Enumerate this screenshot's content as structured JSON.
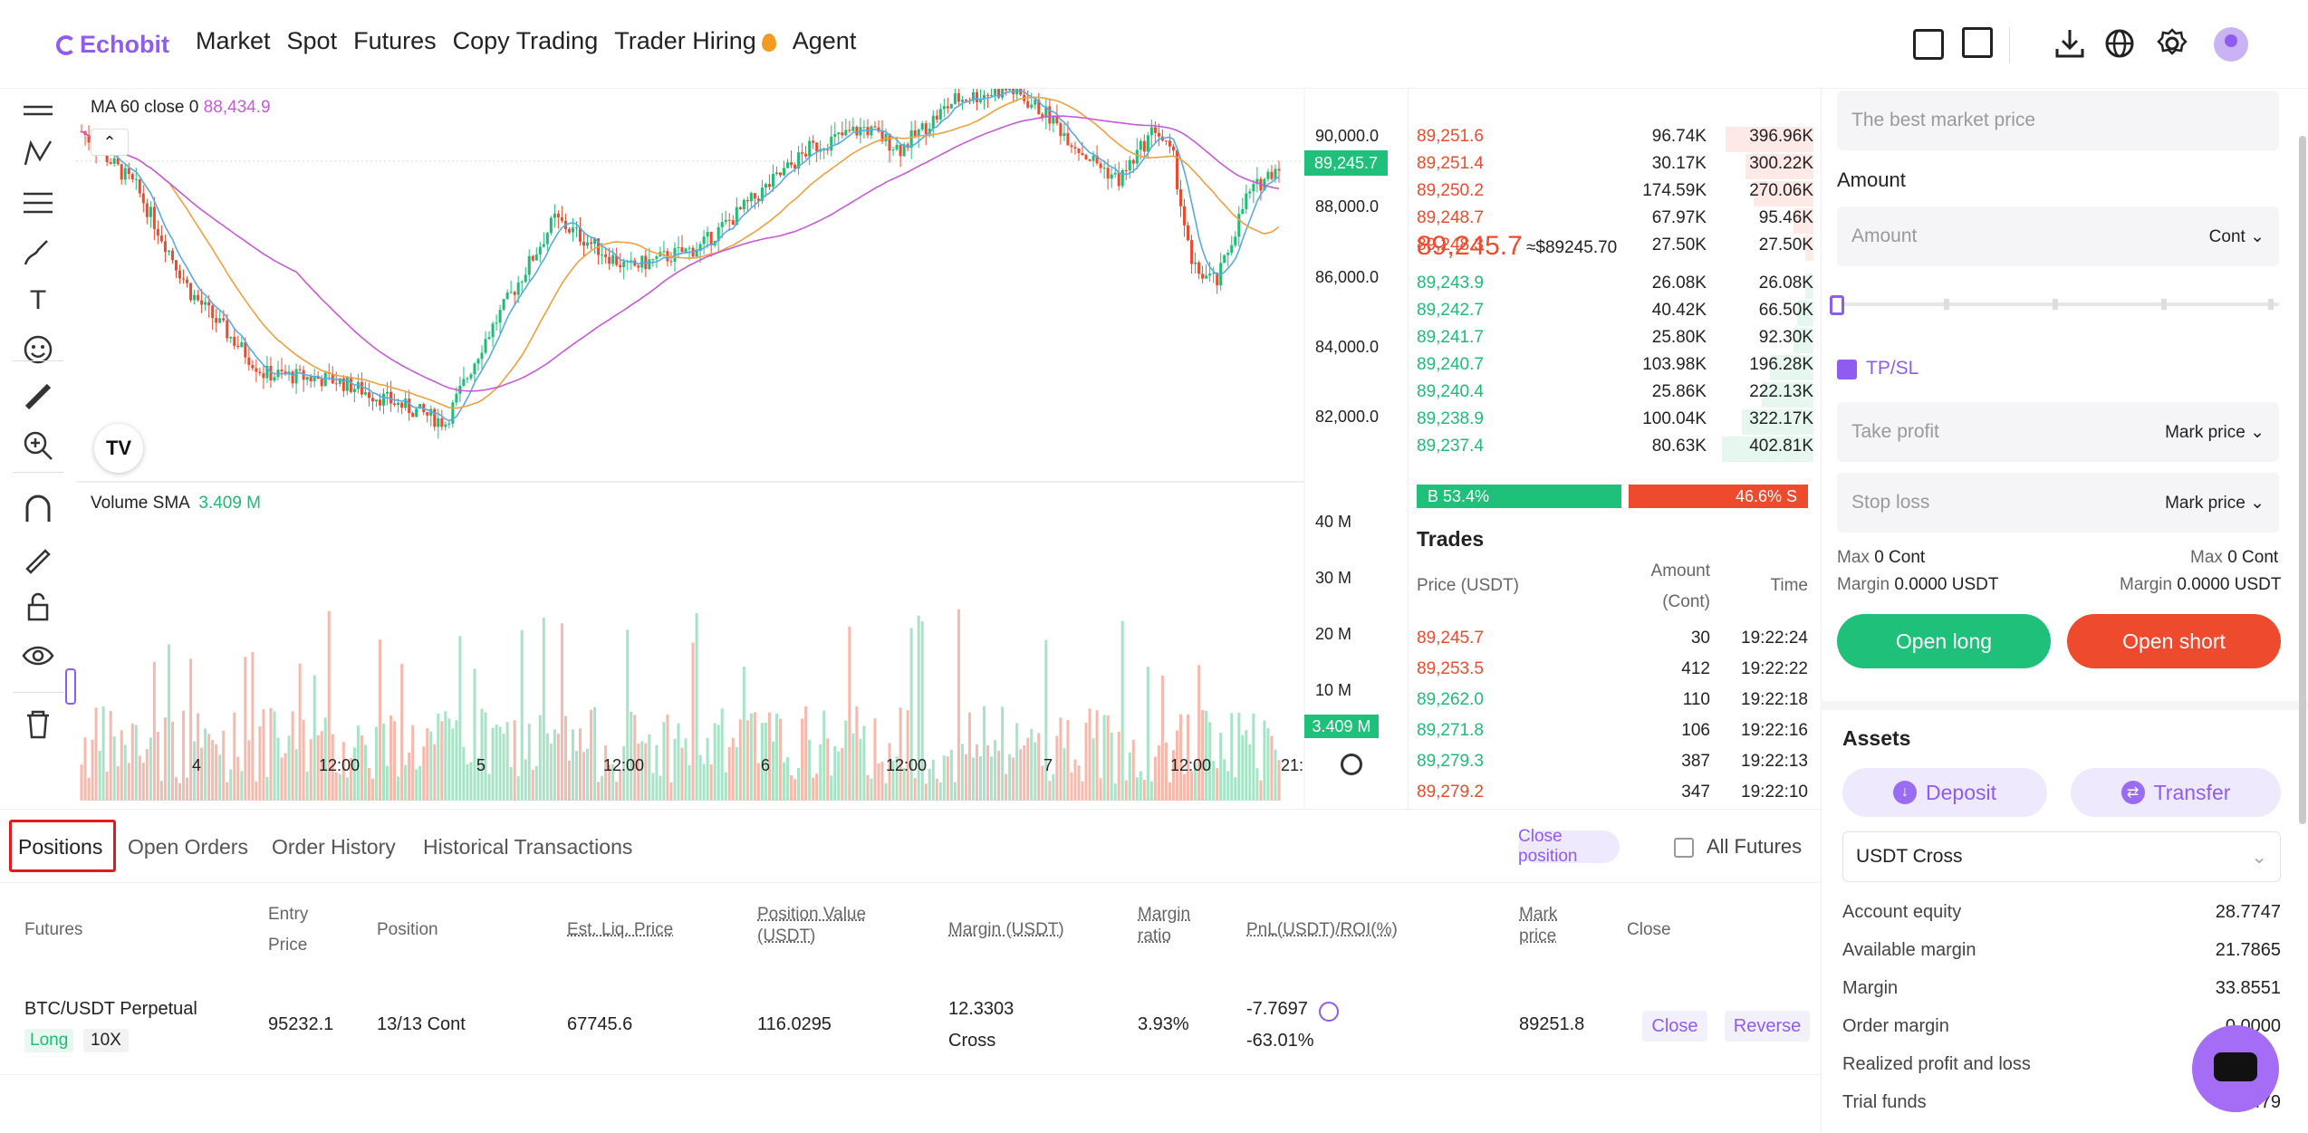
{
  "brand": {
    "name": "Echobit",
    "accent": "#8f5cf2",
    "up": "#1ebc77",
    "down": "#ee4b2e"
  },
  "nav": [
    "Market",
    "Spot",
    "Futures",
    "Copy Trading",
    "Trader Hiring",
    "Agent"
  ],
  "header_icons": [
    "wallet-icon",
    "orders-icon",
    "download-icon",
    "globe-icon",
    "settings-icon",
    "avatar"
  ],
  "chart": {
    "ma_legend": "MA 60 close 0",
    "ma_value": "88,434.9",
    "vol_legend": "Volume SMA",
    "vol_value": "3.409 M",
    "price_axis": [
      "90,000.0",
      "88,000.0",
      "86,000.0",
      "84,000.0",
      "82,000.0"
    ],
    "current_price_tag": "89,245.7",
    "vol_axis": [
      "40 M",
      "30 M",
      "20 M",
      "10 M"
    ],
    "vol_tag": "3.409 M",
    "time_axis": [
      "4",
      "12:00",
      "5",
      "12:00",
      "6",
      "12:00",
      "7",
      "12:00",
      "21:"
    ]
  },
  "orderbook": {
    "asks": [
      {
        "price": "89,251.6",
        "amount": "96.74K",
        "total": "396.96K",
        "depth": 0.22
      },
      {
        "price": "89,251.4",
        "amount": "30.17K",
        "total": "300.22K",
        "depth": 0.17
      },
      {
        "price": "89,250.2",
        "amount": "174.59K",
        "total": "270.06K",
        "depth": 0.15
      },
      {
        "price": "89,248.7",
        "amount": "67.97K",
        "total": "95.46K",
        "depth": 0.05
      },
      {
        "price": "89,248.3",
        "amount": "27.50K",
        "total": "27.50K",
        "depth": 0.02
      }
    ],
    "last_price": "89,245.7",
    "last_usd": "≈$89245.70",
    "bids": [
      {
        "price": "89,243.9",
        "amount": "26.08K",
        "total": "26.08K",
        "depth": 0.02
      },
      {
        "price": "89,242.7",
        "amount": "40.42K",
        "total": "66.50K",
        "depth": 0.04
      },
      {
        "price": "89,241.7",
        "amount": "25.80K",
        "total": "92.30K",
        "depth": 0.05
      },
      {
        "price": "89,240.7",
        "amount": "103.98K",
        "total": "196.28K",
        "depth": 0.11
      },
      {
        "price": "89,240.4",
        "amount": "25.86K",
        "total": "222.13K",
        "depth": 0.13
      },
      {
        "price": "89,238.9",
        "amount": "100.04K",
        "total": "322.17K",
        "depth": 0.18
      },
      {
        "price": "89,237.4",
        "amount": "80.63K",
        "total": "402.81K",
        "depth": 0.23
      }
    ],
    "buy_ratio": "B 53.4%",
    "sell_ratio": "46.6% S"
  },
  "trades": {
    "title": "Trades",
    "headers": {
      "price": "Price (USDT)",
      "amount_1": "Amount",
      "amount_2": "(Cont)",
      "time": "Time"
    },
    "rows": [
      {
        "price": "89,245.7",
        "amount": "30",
        "time": "19:22:24",
        "side": "sell"
      },
      {
        "price": "89,253.5",
        "amount": "412",
        "time": "19:22:22",
        "side": "sell"
      },
      {
        "price": "89,262.0",
        "amount": "110",
        "time": "19:22:18",
        "side": "buy"
      },
      {
        "price": "89,271.8",
        "amount": "106",
        "time": "19:22:16",
        "side": "buy"
      },
      {
        "price": "89,279.3",
        "amount": "387",
        "time": "19:22:13",
        "side": "buy"
      },
      {
        "price": "89,279.2",
        "amount": "347",
        "time": "19:22:10",
        "side": "sell"
      }
    ]
  },
  "order_form": {
    "price_placeholder": "The best market price",
    "amount_label": "Amount",
    "amount_placeholder": "Amount",
    "amount_unit": "Cont",
    "slider_percent": 0,
    "tpsl_label": "TP/SL",
    "tpsl_checked": true,
    "take_profit": "Take profit",
    "stop_loss": "Stop loss",
    "trigger_type": "Mark price",
    "max_long_label": "Max",
    "max_long": "0 Cont",
    "max_short_label": "Max",
    "max_short": "0 Cont",
    "margin_long_label": "Margin",
    "margin_long": "0.0000 USDT",
    "margin_short_label": "Margin",
    "margin_short": "0.0000 USDT",
    "open_long": "Open long",
    "open_short": "Open short"
  },
  "assets": {
    "title": "Assets",
    "deposit": "Deposit",
    "transfer": "Transfer",
    "account_type": "USDT Cross",
    "rows": [
      {
        "label": "Account equity",
        "value": "28.7747"
      },
      {
        "label": "Available margin",
        "value": "21.7865"
      },
      {
        "label": "Margin",
        "value": "33.8551"
      },
      {
        "label": "Order margin",
        "value": "0.0000"
      },
      {
        "label": "Realized profit and loss",
        "value": ""
      },
      {
        "label": "Trial funds",
        "value": "4.2479"
      }
    ]
  },
  "positions": {
    "tabs": [
      "Positions",
      "Open Orders",
      "Order History",
      "Historical Transactions"
    ],
    "active_tab": "Positions",
    "close_position": "Close position",
    "all_futures": "All Futures",
    "columns": {
      "futures": "Futures",
      "entry_1": "Entry",
      "entry_2": "Price",
      "position": "Position",
      "liq": "Est. Liq. Price",
      "value_1": "Position Value",
      "value_2": "(USDT)",
      "margin": "Margin (USDT)",
      "ratio_1": "Margin",
      "ratio_2": "ratio",
      "pnl": "PnL(USDT)/ROI(%)",
      "mark_1": "Mark",
      "mark_2": "price",
      "close": "Close"
    },
    "row": {
      "symbol": "BTC/USDT Perpetual",
      "side": "Long",
      "leverage": "10X",
      "entry": "95232.1",
      "position": "13/13 Cont",
      "liq": "67745.6",
      "value": "116.0295",
      "margin": "12.3303",
      "margin_mode": "Cross",
      "ratio": "3.93%",
      "pnl": "-7.7697",
      "roi": "-63.01%",
      "mark": "89251.8",
      "close_btn": "Close",
      "reverse_btn": "Reverse"
    }
  }
}
